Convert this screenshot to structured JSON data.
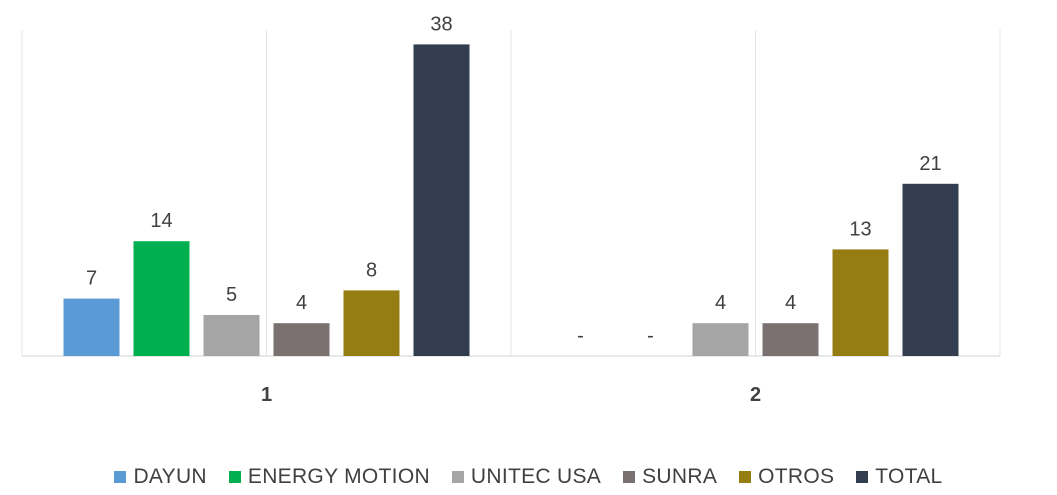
{
  "chart_data": {
    "type": "bar",
    "categories": [
      "1",
      "2"
    ],
    "series": [
      {
        "name": "DAYUN",
        "color": "#5b9bd5",
        "values": [
          7,
          0
        ],
        "labels": [
          "7",
          "-"
        ]
      },
      {
        "name": "ENERGY MOTION",
        "color": "#00b050",
        "values": [
          14,
          0
        ],
        "labels": [
          "14",
          "-"
        ]
      },
      {
        "name": "UNITEC USA",
        "color": "#a5a5a5",
        "values": [
          5,
          4
        ],
        "labels": [
          "5",
          "4"
        ]
      },
      {
        "name": "SUNRA",
        "color": "#7b7171",
        "values": [
          4,
          4
        ],
        "labels": [
          "4",
          "4"
        ]
      },
      {
        "name": "OTROS",
        "color": "#967d13",
        "values": [
          8,
          13
        ],
        "labels": [
          "8",
          "13"
        ]
      },
      {
        "name": "TOTAL",
        "color": "#323e4f",
        "values": [
          38,
          21
        ],
        "labels": [
          "38",
          "21"
        ]
      }
    ],
    "ylim": [
      0,
      40
    ],
    "grid": true,
    "legend": "bottom"
  }
}
